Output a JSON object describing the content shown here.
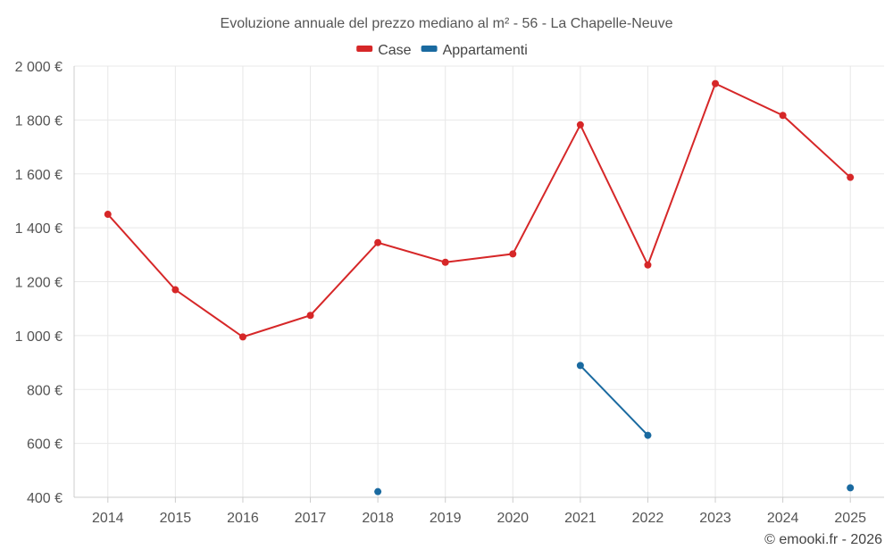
{
  "chart_data": {
    "type": "line",
    "title": "Evoluzione annuale del prezzo mediano al m² - 56 - La Chapelle-Neuve",
    "categories": [
      "2014",
      "2015",
      "2016",
      "2017",
      "2018",
      "2019",
      "2020",
      "2021",
      "2022",
      "2023",
      "2024",
      "2025"
    ],
    "ylim": [
      400,
      2000
    ],
    "yticks": [
      400,
      600,
      800,
      1000,
      1200,
      1400,
      1600,
      1800,
      2000
    ],
    "ytick_labels": [
      "400 €",
      "600 €",
      "800 €",
      "1 000 €",
      "1 200 €",
      "1 400 €",
      "1 600 €",
      "1 800 €",
      "2 000 €"
    ],
    "grid": true,
    "legend_position": "top-center",
    "series": [
      {
        "name": "Case",
        "color": "#d62728",
        "values": [
          1450,
          1170,
          995,
          1075,
          1345,
          1272,
          1303,
          1782,
          1262,
          1935,
          1817,
          1587
        ]
      },
      {
        "name": "Appartamenti",
        "color": "#1a6aa0",
        "values": [
          null,
          null,
          null,
          null,
          421,
          null,
          null,
          889,
          630,
          null,
          null,
          435
        ]
      }
    ]
  },
  "credit": "© emooki.fr - 2026"
}
